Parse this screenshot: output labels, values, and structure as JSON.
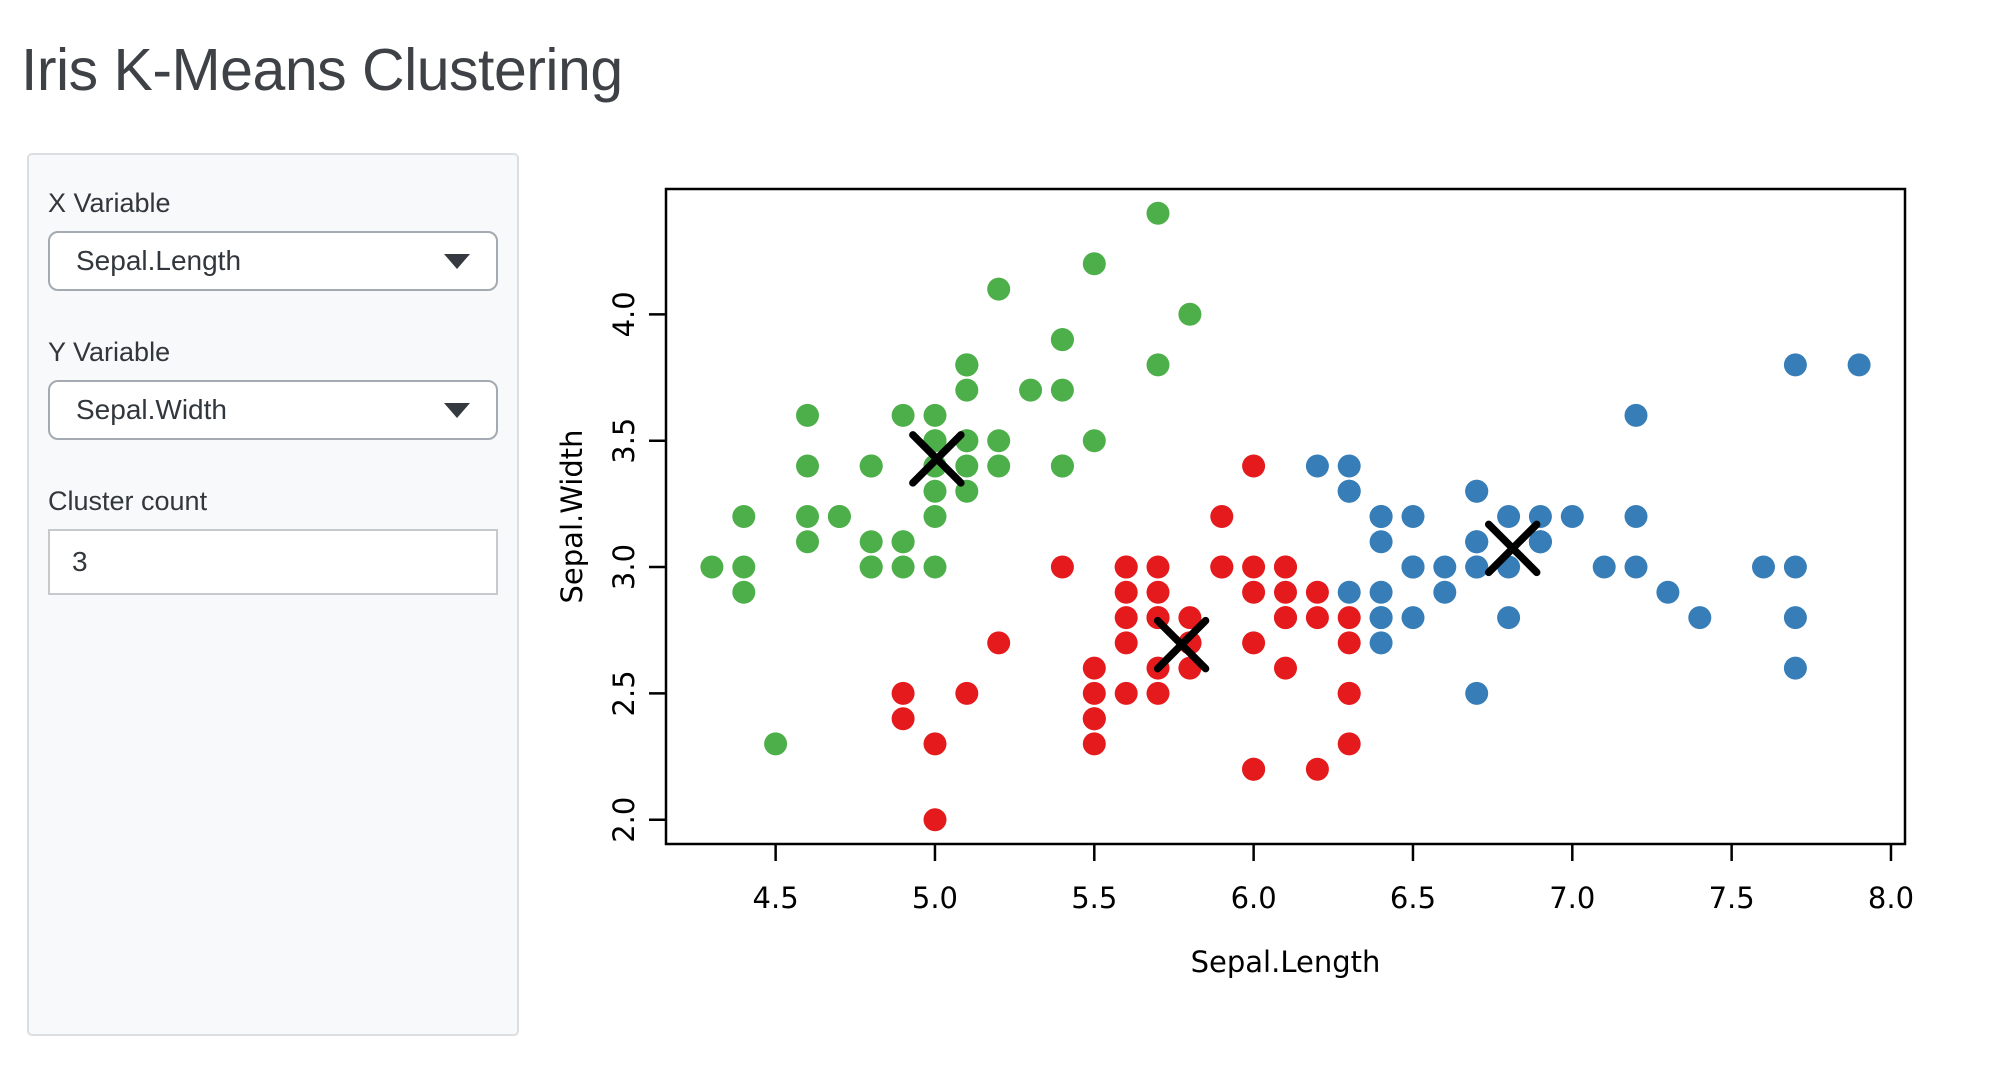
{
  "app": {
    "title": "Iris K-Means Clustering"
  },
  "sidebar": {
    "x_variable": {
      "label": "X Variable",
      "value": "Sepal.Length"
    },
    "y_variable": {
      "label": "Y Variable",
      "value": "Sepal.Width"
    },
    "cluster_count": {
      "label": "Cluster count",
      "value": "3"
    }
  },
  "chart_data": {
    "type": "scatter",
    "title": "",
    "xlabel": "Sepal.Length",
    "ylabel": "Sepal.Width",
    "xlim": [
      4.156,
      8.044
    ],
    "ylim": [
      1.904,
      4.496
    ],
    "x_ticks": [
      4.5,
      5.0,
      5.5,
      6.0,
      6.5,
      7.0,
      7.5,
      8.0
    ],
    "y_ticks": [
      2.0,
      2.5,
      3.0,
      3.5,
      4.0
    ],
    "grid": false,
    "legend": "none",
    "point_color_black": "#000000",
    "series": [
      {
        "name": "cluster-green",
        "color": "#4DAF4A",
        "points": [
          [
            5.1,
            3.5
          ],
          [
            4.9,
            3.0
          ],
          [
            4.7,
            3.2
          ],
          [
            4.6,
            3.1
          ],
          [
            5.0,
            3.6
          ],
          [
            5.4,
            3.9
          ],
          [
            4.6,
            3.4
          ],
          [
            5.0,
            3.4
          ],
          [
            4.4,
            2.9
          ],
          [
            4.9,
            3.1
          ],
          [
            5.4,
            3.7
          ],
          [
            4.8,
            3.4
          ],
          [
            4.8,
            3.0
          ],
          [
            4.3,
            3.0
          ],
          [
            5.8,
            4.0
          ],
          [
            5.7,
            4.4
          ],
          [
            5.4,
            3.9
          ],
          [
            5.1,
            3.5
          ],
          [
            5.7,
            3.8
          ],
          [
            5.1,
            3.8
          ],
          [
            5.4,
            3.4
          ],
          [
            5.1,
            3.7
          ],
          [
            4.6,
            3.6
          ],
          [
            5.1,
            3.3
          ],
          [
            4.8,
            3.4
          ],
          [
            5.0,
            3.0
          ],
          [
            5.0,
            3.4
          ],
          [
            5.2,
            3.5
          ],
          [
            5.2,
            3.4
          ],
          [
            4.7,
            3.2
          ],
          [
            4.8,
            3.1
          ],
          [
            5.4,
            3.4
          ],
          [
            5.2,
            4.1
          ],
          [
            5.5,
            4.2
          ],
          [
            4.9,
            3.1
          ],
          [
            5.0,
            3.2
          ],
          [
            5.5,
            3.5
          ],
          [
            4.9,
            3.6
          ],
          [
            4.4,
            3.0
          ],
          [
            5.1,
            3.4
          ],
          [
            5.0,
            3.5
          ],
          [
            4.5,
            2.3
          ],
          [
            4.4,
            3.2
          ],
          [
            5.0,
            3.5
          ],
          [
            5.1,
            3.8
          ],
          [
            4.8,
            3.0
          ],
          [
            5.1,
            3.8
          ],
          [
            4.6,
            3.2
          ],
          [
            5.3,
            3.7
          ],
          [
            5.0,
            3.3
          ]
        ]
      },
      {
        "name": "cluster-red",
        "color": "#E41A1C",
        "points": [
          [
            5.5,
            2.3
          ],
          [
            5.7,
            2.8
          ],
          [
            4.9,
            2.4
          ],
          [
            5.2,
            2.7
          ],
          [
            5.0,
            2.0
          ],
          [
            5.9,
            3.0
          ],
          [
            6.0,
            2.2
          ],
          [
            6.1,
            2.9
          ],
          [
            5.6,
            2.9
          ],
          [
            5.6,
            3.0
          ],
          [
            5.8,
            2.7
          ],
          [
            6.2,
            2.2
          ],
          [
            5.6,
            2.5
          ],
          [
            5.9,
            3.2
          ],
          [
            6.1,
            2.8
          ],
          [
            6.3,
            2.5
          ],
          [
            6.1,
            2.8
          ],
          [
            6.0,
            2.9
          ],
          [
            5.7,
            2.6
          ],
          [
            5.5,
            2.4
          ],
          [
            5.5,
            2.4
          ],
          [
            5.8,
            2.7
          ],
          [
            6.0,
            2.7
          ],
          [
            5.4,
            3.0
          ],
          [
            6.0,
            3.4
          ],
          [
            6.3,
            2.3
          ],
          [
            5.6,
            3.0
          ],
          [
            5.5,
            2.5
          ],
          [
            5.5,
            2.6
          ],
          [
            6.1,
            3.0
          ],
          [
            5.8,
            2.6
          ],
          [
            5.0,
            2.3
          ],
          [
            5.6,
            2.7
          ],
          [
            5.7,
            3.0
          ],
          [
            5.7,
            2.9
          ],
          [
            6.2,
            2.9
          ],
          [
            5.1,
            2.5
          ],
          [
            5.7,
            2.8
          ],
          [
            5.8,
            2.7
          ],
          [
            4.9,
            2.5
          ],
          [
            5.7,
            2.5
          ],
          [
            5.8,
            2.8
          ],
          [
            6.0,
            2.2
          ],
          [
            5.6,
            2.8
          ],
          [
            6.3,
            2.7
          ],
          [
            6.2,
            2.8
          ],
          [
            6.1,
            3.0
          ],
          [
            6.3,
            2.8
          ],
          [
            6.1,
            2.6
          ],
          [
            6.0,
            3.0
          ],
          [
            5.8,
            2.7
          ],
          [
            6.3,
            2.5
          ],
          [
            5.9,
            3.0
          ]
        ]
      },
      {
        "name": "cluster-blue",
        "color": "#377EB8",
        "points": [
          [
            7.0,
            3.2
          ],
          [
            6.4,
            3.2
          ],
          [
            6.9,
            3.1
          ],
          [
            6.5,
            2.8
          ],
          [
            6.3,
            3.3
          ],
          [
            6.6,
            2.9
          ],
          [
            6.7,
            3.1
          ],
          [
            6.4,
            2.9
          ],
          [
            6.6,
            3.0
          ],
          [
            6.8,
            2.8
          ],
          [
            6.7,
            3.0
          ],
          [
            6.7,
            3.1
          ],
          [
            6.3,
            3.3
          ],
          [
            7.1,
            3.0
          ],
          [
            6.3,
            2.9
          ],
          [
            6.5,
            3.0
          ],
          [
            7.6,
            3.0
          ],
          [
            7.3,
            2.9
          ],
          [
            6.7,
            2.5
          ],
          [
            7.2,
            3.6
          ],
          [
            6.5,
            3.2
          ],
          [
            6.4,
            2.7
          ],
          [
            6.8,
            3.0
          ],
          [
            6.4,
            3.2
          ],
          [
            6.5,
            3.0
          ],
          [
            7.7,
            3.8
          ],
          [
            7.7,
            2.6
          ],
          [
            6.9,
            3.2
          ],
          [
            7.7,
            2.8
          ],
          [
            6.7,
            3.3
          ],
          [
            7.2,
            3.2
          ],
          [
            6.4,
            2.8
          ],
          [
            7.2,
            3.0
          ],
          [
            7.4,
            2.8
          ],
          [
            7.9,
            3.8
          ],
          [
            6.4,
            2.8
          ],
          [
            7.7,
            3.0
          ],
          [
            6.3,
            3.4
          ],
          [
            6.4,
            3.1
          ],
          [
            6.9,
            3.1
          ],
          [
            6.7,
            3.1
          ],
          [
            6.9,
            3.1
          ],
          [
            6.8,
            3.2
          ],
          [
            6.7,
            3.3
          ],
          [
            6.7,
            3.0
          ],
          [
            6.5,
            3.0
          ],
          [
            6.2,
            3.4
          ]
        ]
      }
    ],
    "centroids": {
      "marker": "x",
      "color": "#000000",
      "points": [
        [
          5.006,
          3.428
        ],
        [
          5.774,
          2.693
        ],
        [
          6.813,
          3.074
        ]
      ]
    }
  }
}
